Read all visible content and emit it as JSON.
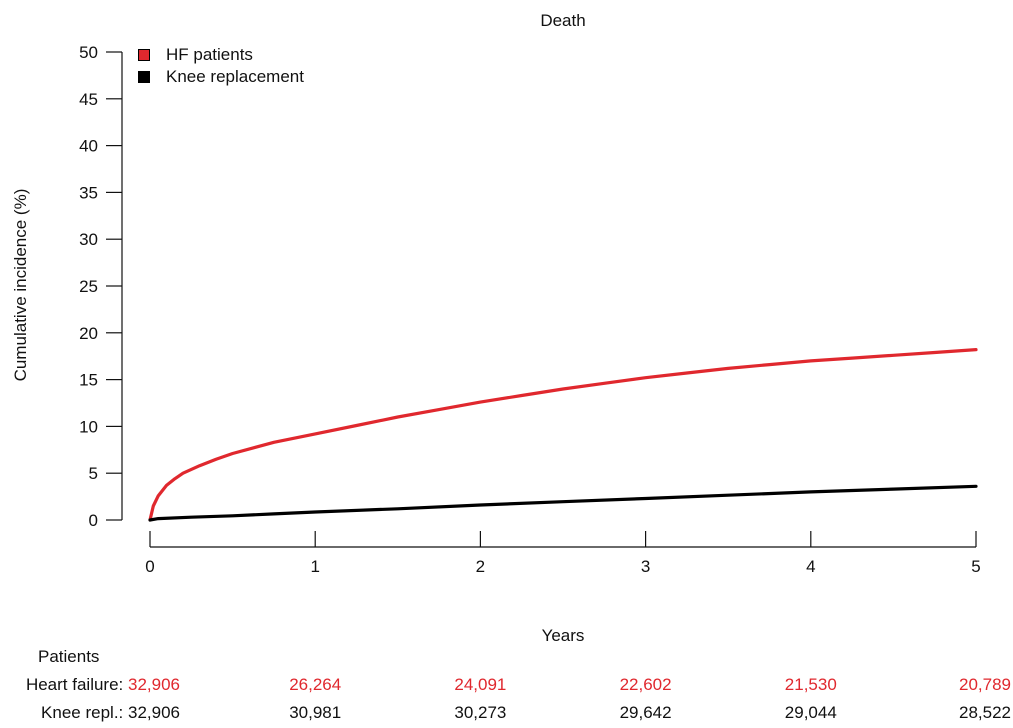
{
  "chart_data": {
    "type": "line",
    "title": "Death",
    "xlabel": "Years",
    "ylabel": "Cumulative incidence (%)",
    "xlim": [
      0,
      5
    ],
    "ylim": [
      0,
      50
    ],
    "x_ticks": [
      0,
      1,
      2,
      3,
      4,
      5
    ],
    "y_ticks": [
      0,
      5,
      10,
      15,
      20,
      25,
      30,
      35,
      40,
      45,
      50
    ],
    "grid": false,
    "legend_position": "top-left",
    "series": [
      {
        "name": "HF patients",
        "color": "#e0282e",
        "x": [
          0,
          0.02,
          0.05,
          0.1,
          0.15,
          0.2,
          0.3,
          0.4,
          0.5,
          0.75,
          1.0,
          1.25,
          1.5,
          1.75,
          2.0,
          2.25,
          2.5,
          2.75,
          3.0,
          3.25,
          3.5,
          3.75,
          4.0,
          4.25,
          4.5,
          4.75,
          5.0
        ],
        "y": [
          0,
          1.5,
          2.6,
          3.7,
          4.4,
          5.0,
          5.8,
          6.5,
          7.1,
          8.3,
          9.2,
          10.1,
          11.0,
          11.8,
          12.6,
          13.3,
          14.0,
          14.6,
          15.2,
          15.7,
          16.2,
          16.6,
          17.0,
          17.3,
          17.6,
          17.9,
          18.2
        ]
      },
      {
        "name": "Knee replacement",
        "color": "#000000",
        "x": [
          0,
          0.05,
          0.25,
          0.5,
          0.75,
          1.0,
          1.5,
          2.0,
          2.5,
          3.0,
          3.5,
          4.0,
          4.5,
          5.0
        ],
        "y": [
          0,
          0.15,
          0.3,
          0.45,
          0.65,
          0.85,
          1.2,
          1.6,
          1.95,
          2.3,
          2.65,
          3.0,
          3.3,
          3.6
        ]
      }
    ]
  },
  "risk_table": {
    "header": "Patients",
    "rows": [
      {
        "label": "Heart failure:",
        "color": "#e0282e",
        "values": [
          "32,906",
          "26,264",
          "24,091",
          "22,602",
          "21,530",
          "20,789"
        ]
      },
      {
        "label": "Knee repl.:",
        "color": "#111111",
        "values": [
          "32,906",
          "30,981",
          "30,273",
          "29,642",
          "29,044",
          "28,522"
        ]
      }
    ]
  }
}
